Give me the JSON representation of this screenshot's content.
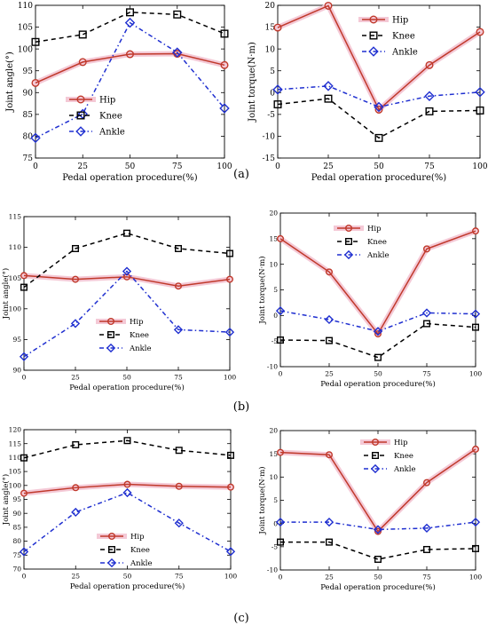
{
  "panel_labels": [
    "(a)",
    "(b)",
    "(c)"
  ],
  "colors": {
    "hip": "#c0392b",
    "knee": "#000000",
    "ankle": "#1f2fd0",
    "hip_highlight": "#f4c9d6"
  },
  "chart_data": [
    {
      "type": "line",
      "panel": "(a)",
      "xlabel": "Pedal operation procedure(%)",
      "ylabel": "Joint angle(°)",
      "x": [
        0,
        25,
        50,
        75,
        100
      ],
      "xlim": [
        0,
        100
      ],
      "ylim": [
        75,
        110
      ],
      "yticks": [
        75,
        80,
        85,
        90,
        95,
        100,
        105,
        110
      ],
      "xticks": [
        0,
        25,
        50,
        75,
        100
      ],
      "legend_position": "middle-left",
      "series": [
        {
          "name": "Hip",
          "values": [
            92.2,
            97.0,
            98.8,
            98.9,
            96.3
          ]
        },
        {
          "name": "Knee",
          "values": [
            101.6,
            103.3,
            108.4,
            107.9,
            103.5
          ]
        },
        {
          "name": "Ankle",
          "values": [
            79.6,
            85.1,
            106.0,
            99.2,
            86.4
          ]
        }
      ]
    },
    {
      "type": "line",
      "panel": "(a)",
      "xlabel": "Pedal operation procedure(%)",
      "ylabel": "Joint torque(N·m)",
      "x": [
        0,
        25,
        50,
        75,
        100
      ],
      "xlim": [
        0,
        100
      ],
      "ylim": [
        -15,
        20
      ],
      "yticks": [
        -15,
        -10,
        -5,
        0,
        5,
        10,
        15,
        20
      ],
      "xticks": [
        0,
        25,
        50,
        75,
        100
      ],
      "legend_position": "top-right",
      "series": [
        {
          "name": "Hip",
          "values": [
            14.9,
            19.9,
            -3.9,
            6.3,
            13.9
          ]
        },
        {
          "name": "Knee",
          "values": [
            -2.7,
            -1.4,
            -10.4,
            -4.3,
            -4.1
          ]
        },
        {
          "name": "Ankle",
          "values": [
            0.7,
            1.5,
            -3.3,
            -0.8,
            0.1
          ]
        }
      ]
    },
    {
      "type": "line",
      "panel": "(b)",
      "xlabel": "Pedal operation procedure(%)",
      "ylabel": "Joint angle(°)",
      "x": [
        0,
        25,
        50,
        75,
        100
      ],
      "xlim": [
        0,
        100
      ],
      "ylim": [
        90,
        115
      ],
      "yticks": [
        90,
        95,
        100,
        105,
        110,
        115
      ],
      "xticks": [
        0,
        25,
        50,
        75,
        100
      ],
      "legend_position": "bottom-middle",
      "series": [
        {
          "name": "Hip",
          "values": [
            105.4,
            104.8,
            105.2,
            103.7,
            104.8
          ]
        },
        {
          "name": "Knee",
          "values": [
            103.5,
            109.8,
            112.3,
            109.8,
            109.0
          ]
        },
        {
          "name": "Ankle",
          "values": [
            92.2,
            97.6,
            106.1,
            96.6,
            96.2
          ]
        }
      ]
    },
    {
      "type": "line",
      "panel": "(b)",
      "xlabel": "Pedal operation procedure(%)",
      "ylabel": "Joint torque(N·m)",
      "x": [
        0,
        25,
        50,
        75,
        100
      ],
      "xlim": [
        0,
        100
      ],
      "ylim": [
        -10,
        20
      ],
      "yticks": [
        -10,
        -5,
        0,
        5,
        10,
        15,
        20
      ],
      "xticks": [
        0,
        25,
        50,
        75,
        100
      ],
      "legend_position": "top-left",
      "series": [
        {
          "name": "Hip",
          "values": [
            15.0,
            8.5,
            -3.6,
            13.0,
            16.5
          ]
        },
        {
          "name": "Knee",
          "values": [
            -4.8,
            -4.9,
            -8.2,
            -1.6,
            -2.3
          ]
        },
        {
          "name": "Ankle",
          "values": [
            0.9,
            -0.8,
            -3.1,
            0.5,
            0.3
          ]
        }
      ]
    },
    {
      "type": "line",
      "panel": "(c)",
      "xlabel": "Pedal operation procedure(%)",
      "ylabel": "Joint angle(°)",
      "x": [
        0,
        25,
        50,
        75,
        100
      ],
      "xlim": [
        0,
        100
      ],
      "ylim": [
        70,
        120
      ],
      "yticks": [
        70,
        75,
        80,
        85,
        90,
        95,
        100,
        105,
        110,
        115,
        120
      ],
      "xticks": [
        0,
        25,
        50,
        75,
        100
      ],
      "legend_position": "bottom-middle",
      "series": [
        {
          "name": "Hip",
          "values": [
            97.2,
            99.2,
            100.4,
            99.7,
            99.4
          ]
        },
        {
          "name": "Knee",
          "values": [
            109.9,
            114.6,
            116.1,
            112.6,
            110.8
          ]
        },
        {
          "name": "Ankle",
          "values": [
            76.2,
            90.4,
            97.4,
            86.5,
            76.3
          ]
        }
      ]
    },
    {
      "type": "line",
      "panel": "(c)",
      "xlabel": "Pedal operation procedure(%)",
      "ylabel": "Joint torque(N·m)",
      "x": [
        0,
        25,
        50,
        75,
        100
      ],
      "xlim": [
        0,
        100
      ],
      "ylim": [
        -10,
        20
      ],
      "yticks": [
        -10,
        -5,
        0,
        5,
        10,
        15,
        20
      ],
      "xticks": [
        0,
        25,
        50,
        75,
        100
      ],
      "legend_position": "top-middle",
      "series": [
        {
          "name": "Hip",
          "values": [
            15.3,
            14.8,
            -1.7,
            8.8,
            16.0
          ]
        },
        {
          "name": "Knee",
          "values": [
            -4.0,
            -4.0,
            -7.7,
            -5.6,
            -5.4
          ]
        },
        {
          "name": "Ankle",
          "values": [
            0.3,
            0.3,
            -1.3,
            -1.0,
            0.3
          ]
        }
      ]
    }
  ]
}
